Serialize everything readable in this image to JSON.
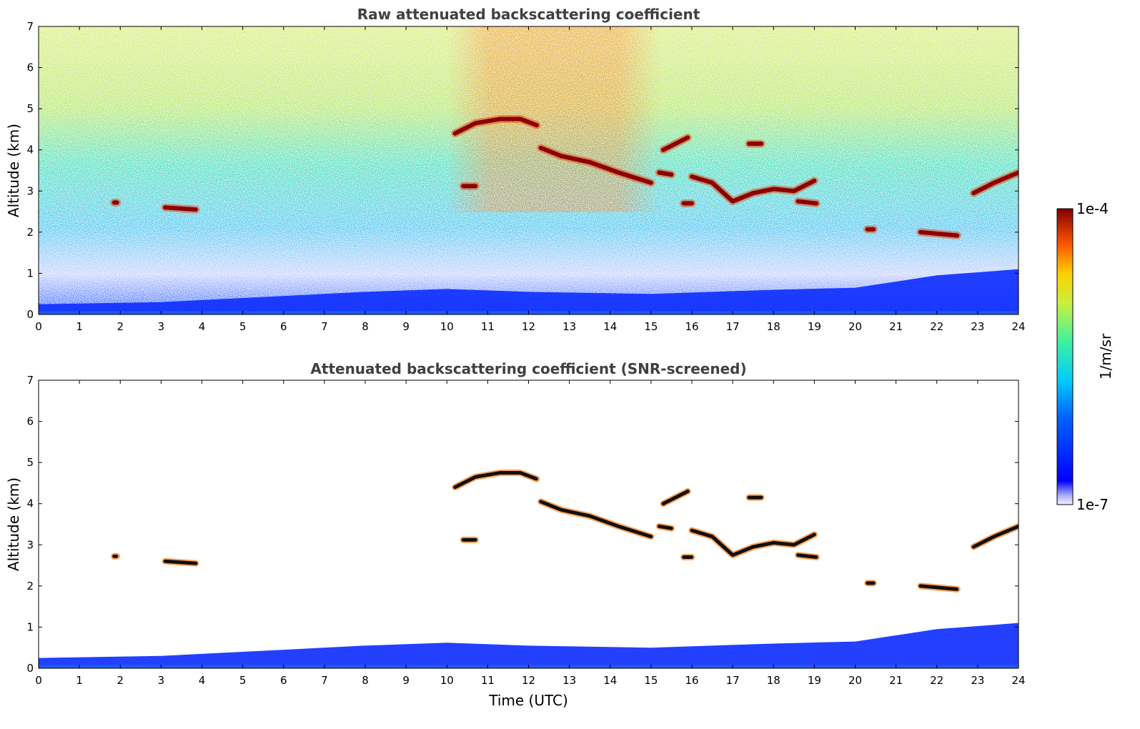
{
  "chart_data": [
    {
      "type": "heatmap",
      "title": "Raw attenuated backscattering coefficient",
      "xlabel": "",
      "ylabel": "Altitude (km)",
      "xlim": [
        0,
        24
      ],
      "ylim": [
        0,
        7
      ],
      "xticks": [
        0,
        1,
        2,
        3,
        4,
        5,
        6,
        7,
        8,
        9,
        10,
        11,
        12,
        13,
        14,
        15,
        16,
        17,
        18,
        19,
        20,
        21,
        22,
        23,
        24
      ],
      "yticks": [
        0,
        1,
        2,
        3,
        4,
        5,
        6,
        7
      ],
      "variant": "raw",
      "noise": "dense speckle over full altitude range, increasing toward daytime (10-15 UTC)",
      "cloud_layers": [
        {
          "t": [
            1.85,
            1.92
          ],
          "alt": [
            2.72,
            2.72
          ]
        },
        {
          "t": [
            3.1,
            3.85
          ],
          "alt": [
            2.6,
            2.55
          ]
        },
        {
          "t": [
            10.2,
            10.7,
            11.3,
            11.8,
            12.2
          ],
          "alt": [
            4.4,
            4.65,
            4.75,
            4.75,
            4.6
          ]
        },
        {
          "t": [
            10.4,
            10.7
          ],
          "alt": [
            3.12,
            3.12
          ]
        },
        {
          "t": [
            12.3,
            12.8,
            13.5,
            14.2,
            15.0
          ],
          "alt": [
            4.05,
            3.85,
            3.7,
            3.45,
            3.2
          ]
        },
        {
          "t": [
            15.2,
            15.5
          ],
          "alt": [
            3.45,
            3.4
          ]
        },
        {
          "t": [
            15.3,
            15.9
          ],
          "alt": [
            4.0,
            4.3
          ]
        },
        {
          "t": [
            15.8,
            16.0
          ],
          "alt": [
            2.7,
            2.7
          ]
        },
        {
          "t": [
            16.0,
            16.5,
            17.0,
            17.5,
            18.0,
            18.5,
            19.0
          ],
          "alt": [
            3.35,
            3.2,
            2.75,
            2.95,
            3.05,
            3.0,
            3.25
          ]
        },
        {
          "t": [
            17.4,
            17.7
          ],
          "alt": [
            4.15,
            4.15
          ]
        },
        {
          "t": [
            18.6,
            19.05
          ],
          "alt": [
            2.75,
            2.7
          ]
        },
        {
          "t": [
            20.3,
            20.45
          ],
          "alt": [
            2.07,
            2.07
          ]
        },
        {
          "t": [
            21.6,
            22.5
          ],
          "alt": [
            2.0,
            1.92
          ]
        },
        {
          "t": [
            22.9,
            23.4,
            24.0
          ],
          "alt": [
            2.95,
            3.2,
            3.45
          ]
        }
      ],
      "boundary_layer_top": {
        "t": [
          0,
          3,
          6,
          8,
          10,
          12,
          15,
          18,
          20,
          22,
          24
        ],
        "alt": [
          0.25,
          0.3,
          0.45,
          0.55,
          0.62,
          0.55,
          0.5,
          0.6,
          0.65,
          0.95,
          1.1
        ]
      }
    },
    {
      "type": "heatmap",
      "title": "Attenuated backscattering coefficient (SNR-screened)",
      "xlabel": "Time (UTC)",
      "ylabel": "Altitude (km)",
      "xlim": [
        0,
        24
      ],
      "ylim": [
        0,
        7
      ],
      "xticks": [
        0,
        1,
        2,
        3,
        4,
        5,
        6,
        7,
        8,
        9,
        10,
        11,
        12,
        13,
        14,
        15,
        16,
        17,
        18,
        19,
        20,
        21,
        22,
        23,
        24
      ],
      "yticks": [
        0,
        1,
        2,
        3,
        4,
        5,
        6,
        7
      ],
      "variant": "screened",
      "noise": "removed; only boundary layer and cloud layers remain",
      "same_layers_as": "raw"
    }
  ],
  "colorbar": {
    "label": "1/m/sr",
    "max_label": "1e-4",
    "min_label": "1e-7",
    "colormap": "jet",
    "scale": "log"
  },
  "colors": {
    "cloud_core": "#8b0000",
    "boundary_layer": "#1030ff",
    "background": "#ffffff"
  }
}
